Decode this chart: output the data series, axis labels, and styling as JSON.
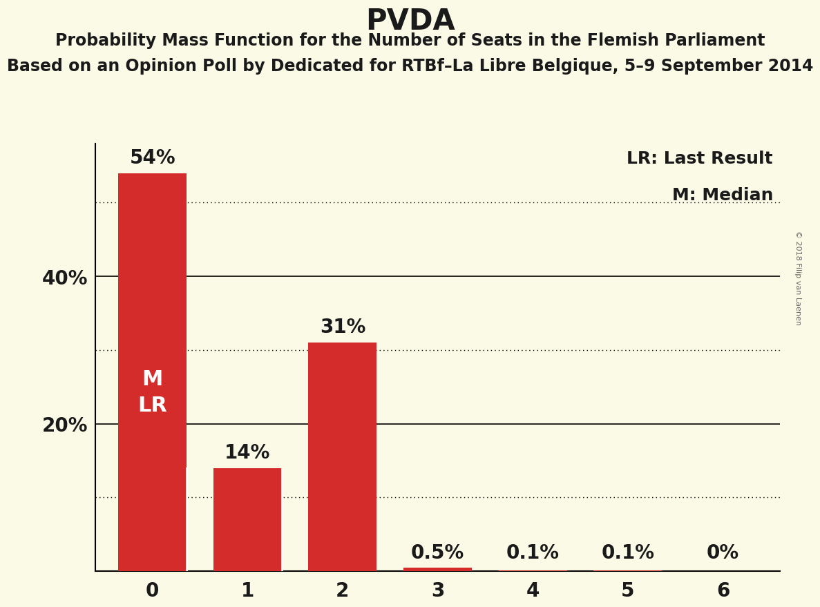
{
  "title": "PVDA",
  "subtitle1": "Probability Mass Function for the Number of Seats in the Flemish Parliament",
  "subtitle2": "Based on an Opinion Poll by Dedicated for RTBf–La Libre Belgique, 5–9 September 2014",
  "categories": [
    0,
    1,
    2,
    3,
    4,
    5,
    6
  ],
  "values": [
    54.0,
    14.0,
    31.0,
    0.5,
    0.1,
    0.1,
    0.0
  ],
  "bar_color": "#d42b2b",
  "background_color": "#fafae6",
  "text_color": "#1a1a1a",
  "bar_labels": [
    "54%",
    "14%",
    "31%",
    "0.5%",
    "0.1%",
    "0.1%",
    "0%"
  ],
  "inside_label": "M\nLR",
  "solid_gridlines": [
    20,
    40
  ],
  "dotted_gridlines": [
    10,
    30,
    50
  ],
  "legend_text1": "LR: Last Result",
  "legend_text2": "M: Median",
  "copyright_text": "© 2018 Filip van Laenen",
  "title_fontsize": 30,
  "subtitle_fontsize": 17,
  "label_fontsize": 20,
  "tick_fontsize": 20,
  "inside_label_fontsize": 22,
  "legend_fontsize": 18,
  "ylim": [
    0,
    58
  ],
  "bar_width": 0.72
}
